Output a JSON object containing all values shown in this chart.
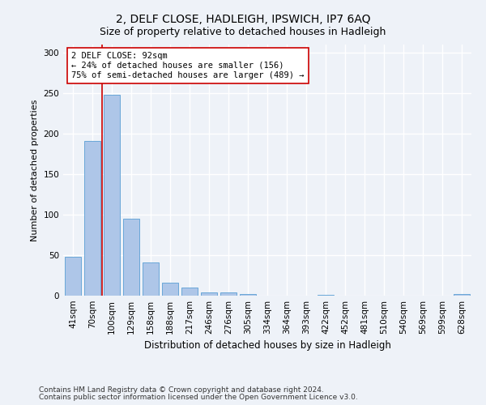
{
  "title_line1": "2, DELF CLOSE, HADLEIGH, IPSWICH, IP7 6AQ",
  "title_line2": "Size of property relative to detached houses in Hadleigh",
  "xlabel": "Distribution of detached houses by size in Hadleigh",
  "ylabel": "Number of detached properties",
  "categories": [
    "41sqm",
    "70sqm",
    "100sqm",
    "129sqm",
    "158sqm",
    "188sqm",
    "217sqm",
    "246sqm",
    "276sqm",
    "305sqm",
    "334sqm",
    "364sqm",
    "393sqm",
    "422sqm",
    "452sqm",
    "481sqm",
    "510sqm",
    "540sqm",
    "569sqm",
    "599sqm",
    "628sqm"
  ],
  "values": [
    48,
    191,
    248,
    95,
    41,
    16,
    10,
    4,
    4,
    2,
    0,
    0,
    0,
    1,
    0,
    0,
    0,
    0,
    0,
    0,
    2
  ],
  "bar_color": "#aec6e8",
  "bar_edge_color": "#5a9fd4",
  "vline_color": "#cc0000",
  "annotation_text": "2 DELF CLOSE: 92sqm\n← 24% of detached houses are smaller (156)\n75% of semi-detached houses are larger (489) →",
  "annotation_box_color": "#ffffff",
  "annotation_box_edge": "#cc0000",
  "ylim": [
    0,
    310
  ],
  "yticks": [
    0,
    50,
    100,
    150,
    200,
    250,
    300
  ],
  "footer_line1": "Contains HM Land Registry data © Crown copyright and database right 2024.",
  "footer_line2": "Contains public sector information licensed under the Open Government Licence v3.0.",
  "background_color": "#eef2f8",
  "grid_color": "#ffffff",
  "title1_fontsize": 10,
  "title2_fontsize": 9,
  "ylabel_fontsize": 8,
  "xlabel_fontsize": 8.5,
  "tick_fontsize": 7.5,
  "footer_fontsize": 6.5
}
